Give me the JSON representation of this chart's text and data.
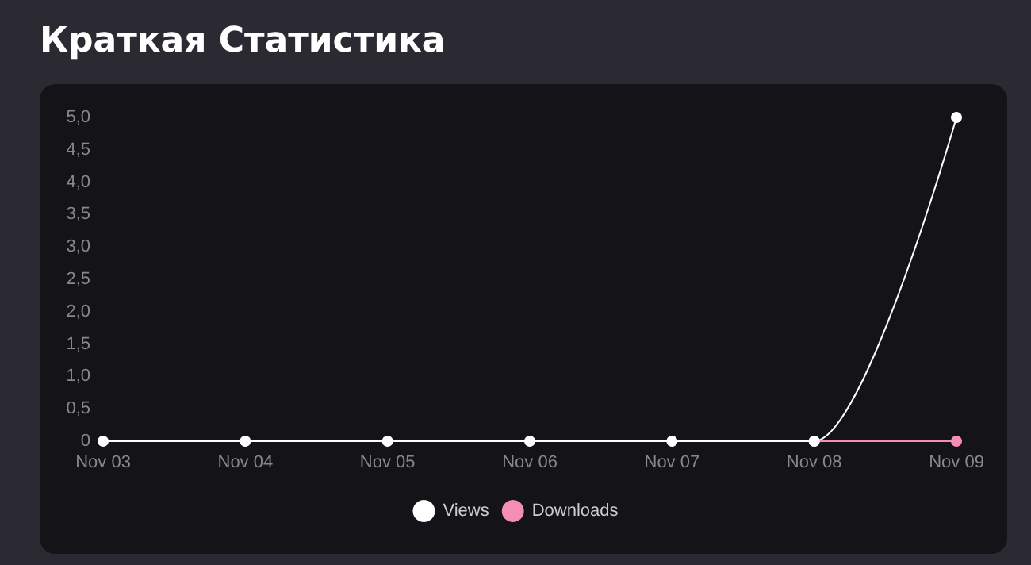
{
  "chart_data": {
    "type": "line",
    "title": "Краткая Статистика",
    "categories": [
      "Nov 03",
      "Nov 04",
      "Nov 05",
      "Nov 06",
      "Nov 07",
      "Nov 08",
      "Nov 09"
    ],
    "series": [
      {
        "name": "Views",
        "color": "#ffffff",
        "values": [
          0,
          0,
          0,
          0,
          0,
          0,
          5
        ]
      },
      {
        "name": "Downloads",
        "color": "#f48fb1",
        "values": [
          null,
          null,
          null,
          null,
          null,
          0,
          0
        ]
      }
    ],
    "ylim": [
      0,
      5
    ],
    "yticks": [
      0,
      {
        "value": 0.5,
        "label": "0,5"
      },
      {
        "value": 1,
        "label": "1,0"
      },
      {
        "value": 1.5,
        "label": "1,5"
      },
      {
        "value": 2,
        "label": "2,0"
      },
      {
        "value": 2.5,
        "label": "2,5"
      },
      {
        "value": 3,
        "label": "3,0"
      },
      {
        "value": 3.5,
        "label": "3,5"
      },
      {
        "value": 4,
        "label": "4,0"
      },
      {
        "value": 4.5,
        "label": "4,5"
      },
      {
        "value": 5,
        "label": "5,0"
      }
    ],
    "grid": false,
    "legend": "bottom",
    "marker": "circle",
    "line_style": "solid"
  }
}
